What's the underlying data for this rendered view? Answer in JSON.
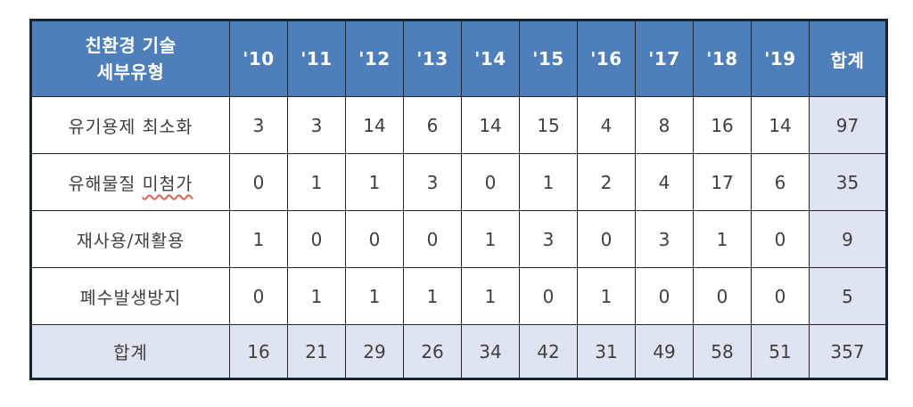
{
  "colors": {
    "header_bg": "#4E7FBA",
    "header_text": "#FFFFFF",
    "light_bg": "#DEE4F2",
    "border": "#262626",
    "border_outer": "#1C2330",
    "text": "#3F3F3F",
    "spellcheck": "#E0604A"
  },
  "table": {
    "header": {
      "type_label_line1": "친환경 기술",
      "type_label_line2": "세부유형",
      "years": [
        "'10",
        "'11",
        "'12",
        "'13",
        "'14",
        "'15",
        "'16",
        "'17",
        "'18",
        "'19"
      ],
      "total_label": "합계"
    },
    "rows": [
      {
        "label": "유기용제 최소화",
        "values": [
          3,
          3,
          14,
          6,
          14,
          15,
          4,
          8,
          16,
          14
        ],
        "total": 97
      },
      {
        "label_prefix": "유해물질 ",
        "label_underlined": "미첨가",
        "values": [
          0,
          1,
          1,
          3,
          0,
          1,
          2,
          4,
          17,
          6
        ],
        "total": 35
      },
      {
        "label": "재사용/재활용",
        "values": [
          1,
          0,
          0,
          0,
          1,
          3,
          0,
          3,
          1,
          0
        ],
        "total": 9
      },
      {
        "label": "폐수발생방지",
        "values": [
          0,
          1,
          1,
          1,
          1,
          0,
          1,
          0,
          0,
          0
        ],
        "total": 5
      }
    ],
    "footer": {
      "label": "합계",
      "values": [
        16,
        21,
        29,
        26,
        34,
        42,
        31,
        49,
        58,
        51
      ],
      "total": 357
    }
  }
}
